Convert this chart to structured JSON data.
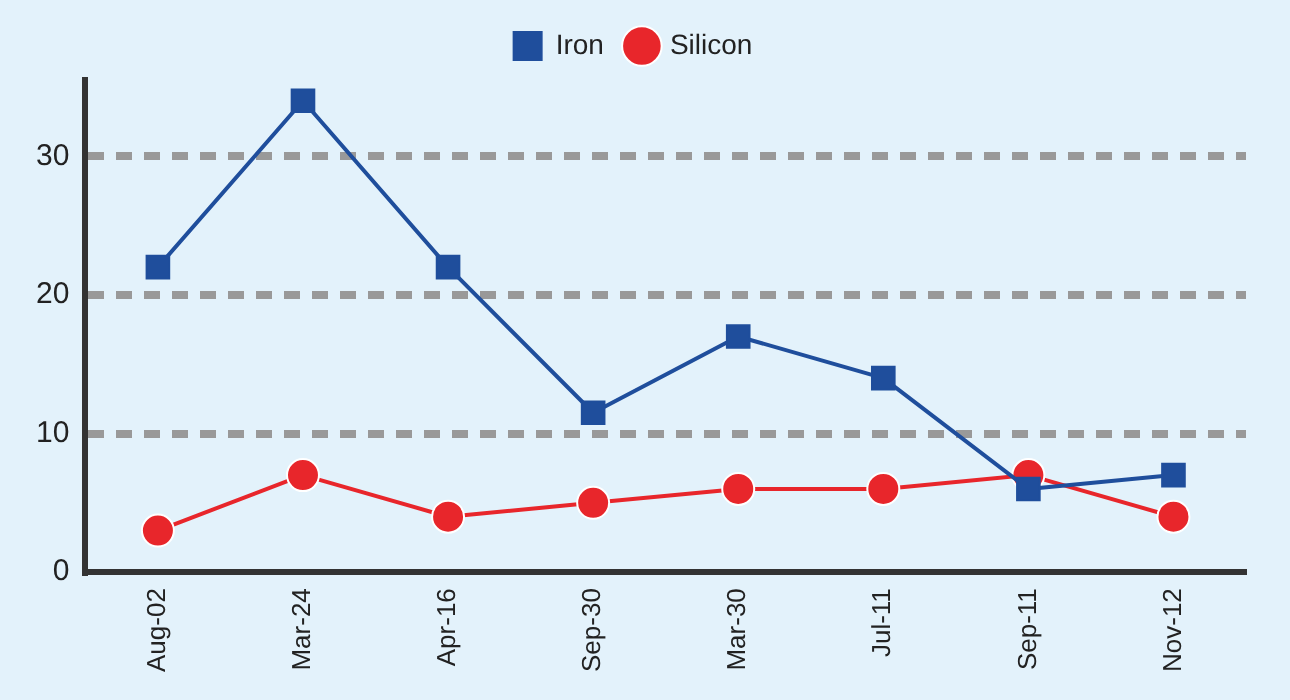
{
  "chart_data": {
    "type": "line",
    "categories": [
      "Aug-02",
      "Mar-24",
      "Apr-16",
      "Sep-30",
      "Mar-30",
      "Jul-11",
      "Sep-11",
      "Nov-12"
    ],
    "series": [
      {
        "name": "Iron",
        "color": "#1f4e9c",
        "marker": "square",
        "values": [
          22,
          34,
          22,
          11.5,
          17,
          14,
          6,
          7
        ]
      },
      {
        "name": "Silicon",
        "color": "#e8262b",
        "marker": "circle",
        "values": [
          3,
          7,
          4,
          5,
          6,
          6,
          7,
          4
        ]
      }
    ],
    "ylim": [
      0,
      35.5
    ],
    "yticks": [
      0,
      10,
      20,
      30
    ],
    "grid": "y",
    "legend": "top",
    "line_style": "solid"
  }
}
